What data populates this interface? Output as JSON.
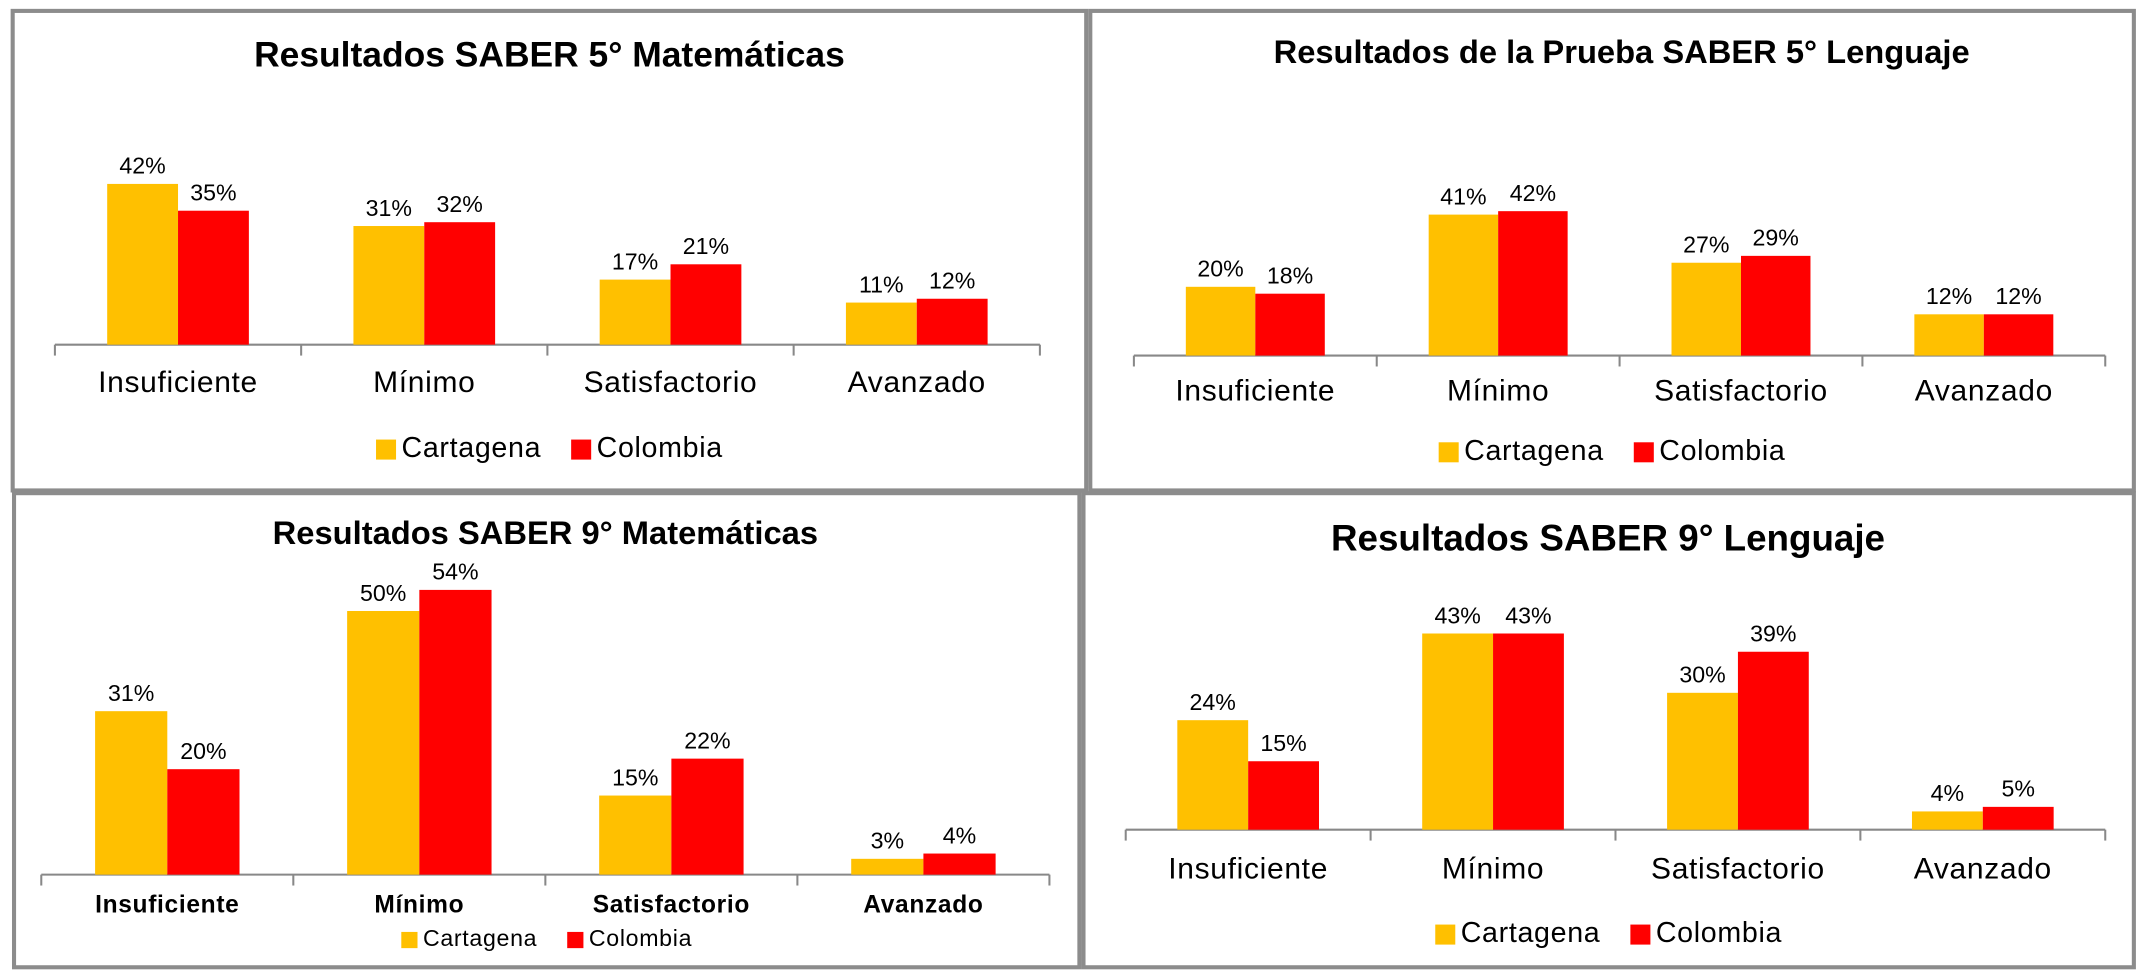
{
  "chart_data": [
    {
      "type": "bar",
      "title": "Resultados SABER 5° Matemáticas",
      "categories": [
        "Insuficiente",
        "Mínimo",
        "Satisfactorio",
        "Avanzado"
      ],
      "series": [
        {
          "name": "Cartagena",
          "color": "#FFC000",
          "values": [
            42,
            31,
            17,
            11
          ],
          "value_labels": [
            "42%",
            "31%",
            "17%",
            "11%"
          ]
        },
        {
          "name": "Colombia",
          "color": "#FF0000",
          "values": [
            35,
            32,
            21,
            12
          ],
          "value_labels": [
            "35%",
            "32%",
            "21%",
            "12%"
          ]
        }
      ]
    },
    {
      "type": "bar",
      "title": "Resultados de la Prueba SABER 5° Lenguaje",
      "categories": [
        "Insuficiente",
        "Mínimo",
        "Satisfactorio",
        "Avanzado"
      ],
      "series": [
        {
          "name": "Cartagena",
          "color": "#FFC000",
          "values": [
            20,
            41,
            27,
            12
          ],
          "value_labels": [
            "20%",
            "41%",
            "27%",
            "12%"
          ]
        },
        {
          "name": "Colombia",
          "color": "#FF0000",
          "values": [
            18,
            42,
            29,
            12
          ],
          "value_labels": [
            "18%",
            "42%",
            "29%",
            "12%"
          ]
        }
      ]
    },
    {
      "type": "bar",
      "title": "Resultados SABER 9° Matemáticas",
      "categories": [
        "Insuficiente",
        "Mínimo",
        "Satisfactorio",
        "Avanzado"
      ],
      "series": [
        {
          "name": "Cartagena",
          "color": "#FFC000",
          "values": [
            31,
            50,
            15,
            3
          ],
          "value_labels": [
            "31%",
            "50%",
            "15%",
            "3%"
          ]
        },
        {
          "name": "Colombia",
          "color": "#FF0000",
          "values": [
            20,
            54,
            22,
            4
          ],
          "value_labels": [
            "20%",
            "54%",
            "22%",
            "4%"
          ]
        }
      ]
    },
    {
      "type": "bar",
      "title": "Resultados SABER 9° Lenguaje",
      "categories": [
        "Insuficiente",
        "Mínimo",
        "Satisfactorio",
        "Avanzado"
      ],
      "series": [
        {
          "name": "Cartagena",
          "color": "#FFC000",
          "values": [
            24,
            43,
            30,
            4
          ],
          "value_labels": [
            "24%",
            "43%",
            "30%",
            "4%"
          ]
        },
        {
          "name": "Colombia",
          "color": "#FF0000",
          "values": [
            15,
            43,
            39,
            5
          ],
          "value_labels": [
            "15%",
            "43%",
            "39%",
            "5%"
          ]
        }
      ]
    }
  ]
}
